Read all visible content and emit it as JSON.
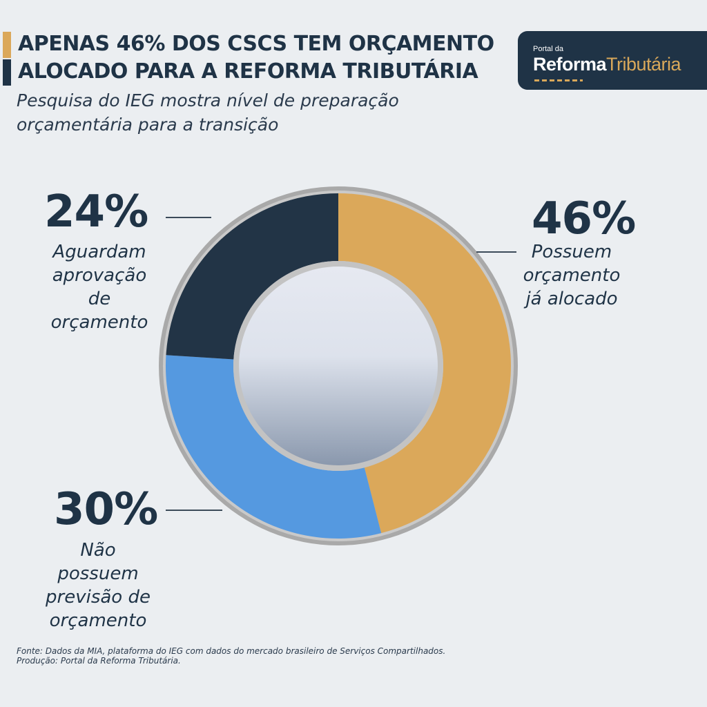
{
  "header": {
    "title_line1": "APENAS 46% DOS CSCS TEM ORÇAMENTO",
    "title_line2": "ALOCADO PARA A REFORMA TRIBUTÁRIA",
    "subtitle_line1": "Pesquisa do IEG mostra nível de preparação",
    "subtitle_line2": "orçamentária para a transição",
    "bar_color_1": "#dba85a",
    "bar_color_2": "#1f3346"
  },
  "logo": {
    "small": "Portal da",
    "main_bold": "Reforma",
    "main_light": "Tributária"
  },
  "chart_data": {
    "type": "pie",
    "variant": "donut",
    "categories": [
      "Possuem orçamento já alocado",
      "Não possuem previsão de orçamento",
      "Aguardam aprovação de orçamento"
    ],
    "values": [
      46,
      30,
      24
    ],
    "unit": "%",
    "colors": [
      "#dba85a",
      "#5599e0",
      "#223446"
    ],
    "segments": [
      {
        "value": 46,
        "value_label": "46%",
        "label_lines": [
          "Possuem",
          "orçamento",
          "já alocado"
        ],
        "color": "#dba85a"
      },
      {
        "value": 30,
        "value_label": "30%",
        "label_lines": [
          "Não",
          "possuem",
          "previsão de",
          "orçamento"
        ],
        "color": "#5599e0"
      },
      {
        "value": 24,
        "value_label": "24%",
        "label_lines": [
          "Aguardam",
          "aprovação",
          "de",
          "orçamento"
        ],
        "color": "#223446"
      }
    ]
  },
  "footer": {
    "line1": "Fonte: Dados da MIA, plataforma do IEG com dados do mercado brasileiro de Serviços Compartilhados.",
    "line2": "Produção: Portal da Reforma Tributária."
  }
}
